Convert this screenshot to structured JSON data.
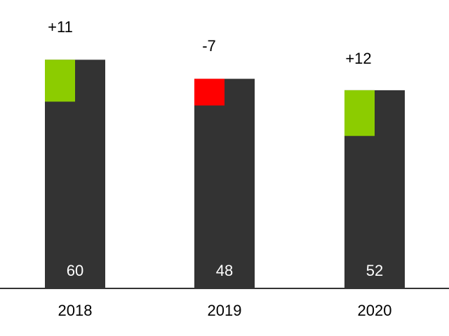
{
  "chart_data": {
    "type": "bar",
    "categories": [
      "2018",
      "2019",
      "2020"
    ],
    "values": [
      60,
      48,
      52
    ],
    "deltas": [
      11,
      -7,
      12
    ],
    "delta_labels": [
      "+11",
      "-7",
      "+12"
    ],
    "value_labels": [
      "60",
      "48",
      "52"
    ],
    "ylim": [
      0,
      72
    ],
    "grid": false,
    "colors": {
      "bar": "#333333",
      "positive": "#8ccc00",
      "negative": "#ff0000",
      "axis": "#333333"
    }
  }
}
